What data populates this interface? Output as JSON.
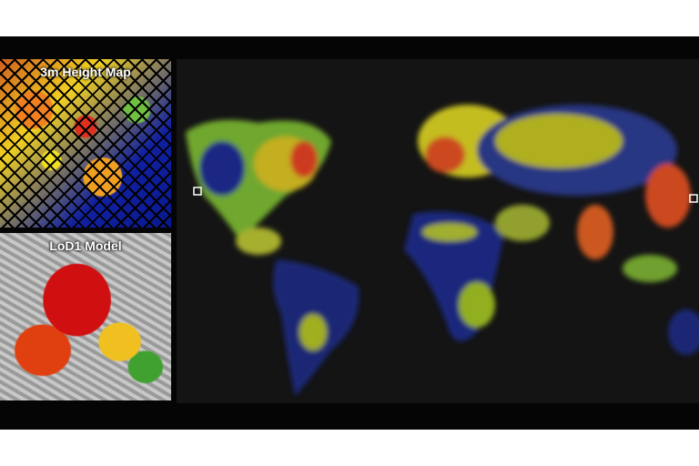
{
  "panels": {
    "height_map": {
      "label": "3m Height Map"
    },
    "lod_model": {
      "label": "LoD1 Model"
    }
  },
  "colors": {
    "low": "#0a1890",
    "mid_low": "#70c040",
    "mid": "#f0e020",
    "high": "#f08020",
    "highest": "#e03020",
    "background": "#141414"
  }
}
